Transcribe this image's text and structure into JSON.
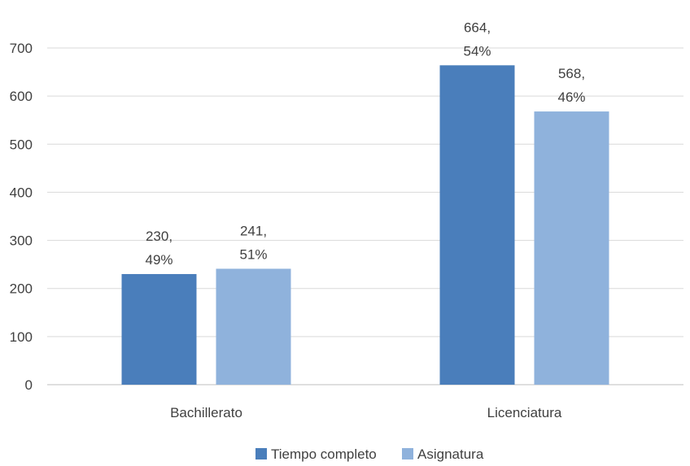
{
  "chart_data": {
    "type": "bar",
    "categories": [
      "Bachillerato",
      "Licenciatura"
    ],
    "series": [
      {
        "name": "Tiempo completo",
        "color": "#4a7ebb",
        "values": [
          230,
          664
        ],
        "labels": [
          [
            "230,",
            "49%"
          ],
          [
            "664,",
            "54%"
          ]
        ]
      },
      {
        "name": "Asignatura",
        "color": "#8fb2dc",
        "values": [
          241,
          568
        ],
        "labels": [
          [
            "241,",
            "51%"
          ],
          [
            "568,",
            "46%"
          ]
        ]
      }
    ],
    "yticks": [
      "0",
      "100",
      "200",
      "300",
      "400",
      "500",
      "600",
      "700"
    ],
    "ylim": [
      0,
      700
    ],
    "grid": true,
    "legend_position": "bottom",
    "title": "",
    "xlabel": "",
    "ylabel": ""
  }
}
